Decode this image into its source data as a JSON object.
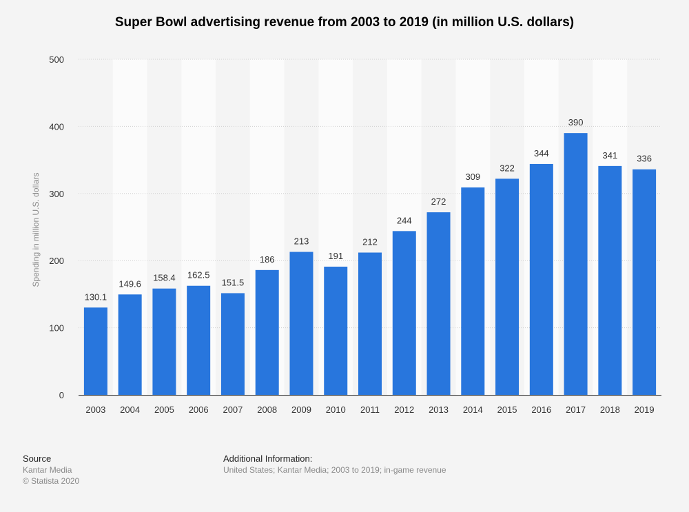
{
  "chart_data": {
    "type": "bar",
    "title": "Super Bowl advertising revenue from 2003 to 2019 (in million U.S. dollars)",
    "xlabel": "",
    "ylabel": "Spending in million U.S. dollars",
    "categories": [
      "2003",
      "2004",
      "2005",
      "2006",
      "2007",
      "2008",
      "2009",
      "2010",
      "2011",
      "2012",
      "2013",
      "2014",
      "2015",
      "2016",
      "2017",
      "2018",
      "2019"
    ],
    "values": [
      130.1,
      149.6,
      158.4,
      162.5,
      151.5,
      186,
      213,
      191,
      212,
      244,
      272,
      309,
      322,
      344,
      390,
      341,
      336
    ],
    "value_labels": [
      "130.1",
      "149.6",
      "158.4",
      "162.5",
      "151.5",
      "186",
      "213",
      "191",
      "212",
      "244",
      "272",
      "309",
      "322",
      "344",
      "390",
      "341",
      "336"
    ],
    "ylim": [
      0,
      500
    ],
    "yticks": [
      0,
      100,
      200,
      300,
      400,
      500
    ],
    "bar_color": "#2876dd",
    "grid": true
  },
  "footer": {
    "source_title": "Source",
    "source_name": "Kantar Media",
    "copyright": "© Statista 2020",
    "info_title": "Additional Information:",
    "info_text": "United States; Kantar Media; 2003 to 2019; in-game revenue"
  }
}
